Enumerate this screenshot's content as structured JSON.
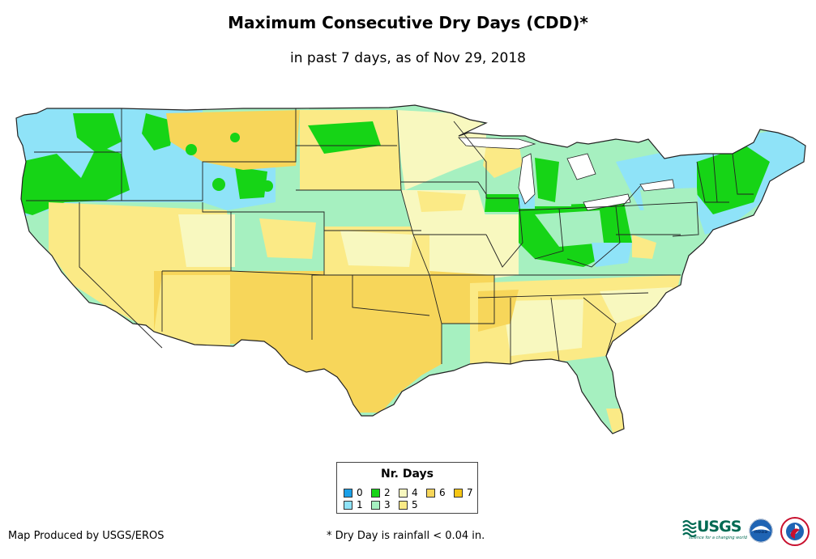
{
  "map": {
    "title": "Maximum Consecutive Dry Days (CDD)*",
    "subtitle": "in past 7 days, as of Nov 29, 2018"
  },
  "legend": {
    "title": "Nr. Days",
    "items": [
      {
        "label": "0",
        "color": "#1aa0e8"
      },
      {
        "label": "1",
        "color": "#8fe3f8"
      },
      {
        "label": "2",
        "color": "#16d416"
      },
      {
        "label": "3",
        "color": "#a6f0c0"
      },
      {
        "label": "4",
        "color": "#f8f8bf"
      },
      {
        "label": "5",
        "color": "#fbea86"
      },
      {
        "label": "6",
        "color": "#f7d65a"
      },
      {
        "label": "7",
        "color": "#f6c614"
      }
    ]
  },
  "footer": {
    "credit": "Map Produced by USGS/EROS",
    "footnote": "* Dry Day is rainfall < 0.04 in."
  },
  "logos": {
    "usgs": {
      "text": "USGS",
      "tagline": "science for a changing world",
      "icon": "usgs-wave-icon"
    },
    "noaa": {
      "text": "noaa",
      "icon": "noaa-bird-icon"
    },
    "nws": {
      "icon": "nws-cyclone-icon"
    }
  }
}
